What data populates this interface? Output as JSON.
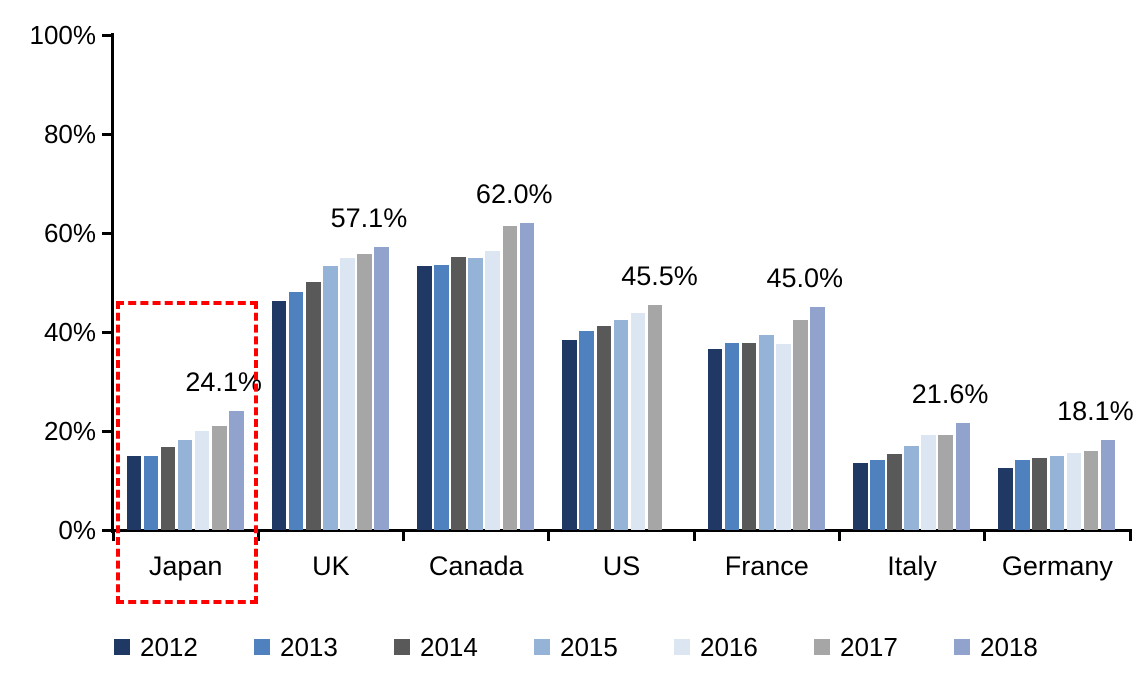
{
  "chart_data": {
    "type": "bar",
    "title": "",
    "xlabel": "",
    "ylabel": "",
    "ylim": [
      0,
      100
    ],
    "grid": false,
    "legend_position": "bottom",
    "y_ticks": [
      "0%",
      "20%",
      "40%",
      "60%",
      "80%",
      "100%"
    ],
    "categories": [
      "Japan",
      "UK",
      "Canada",
      "US",
      "France",
      "Italy",
      "Germany"
    ],
    "series": [
      {
        "name": "2012",
        "color": "#1F3864",
        "values": [
          14.9,
          46.3,
          53.3,
          38.4,
          36.6,
          13.5,
          12.6
        ]
      },
      {
        "name": "2013",
        "color": "#4E81BD",
        "values": [
          15.0,
          48.0,
          53.6,
          40.3,
          37.8,
          14.2,
          14.1
        ]
      },
      {
        "name": "2014",
        "color": "#595959",
        "values": [
          16.8,
          50.1,
          55.1,
          41.2,
          37.8,
          15.3,
          14.5
        ]
      },
      {
        "name": "2015",
        "color": "#95B3D7",
        "values": [
          18.2,
          53.4,
          55.0,
          42.4,
          39.4,
          17.0,
          15.0
        ]
      },
      {
        "name": "2016",
        "color": "#DCE6F2",
        "values": [
          19.9,
          54.9,
          56.4,
          43.8,
          37.6,
          19.1,
          15.5
        ]
      },
      {
        "name": "2017",
        "color": "#A6A6A6",
        "values": [
          21.1,
          55.8,
          61.5,
          45.5,
          42.5,
          19.2,
          16.0
        ]
      },
      {
        "name": "2018",
        "color": "#91A3CD",
        "values": [
          24.1,
          57.1,
          62.0,
          null,
          45.0,
          21.6,
          18.1
        ]
      }
    ],
    "group_labels": [
      "24.1%",
      "57.1%",
      "62.0%",
      "45.5%",
      "45.0%",
      "21.6%",
      "18.1%"
    ],
    "highlight": {
      "target": "Japan",
      "color": "#FF0000",
      "style": "dashed"
    },
    "axis_color": "#000000",
    "label_color": "#000000"
  }
}
